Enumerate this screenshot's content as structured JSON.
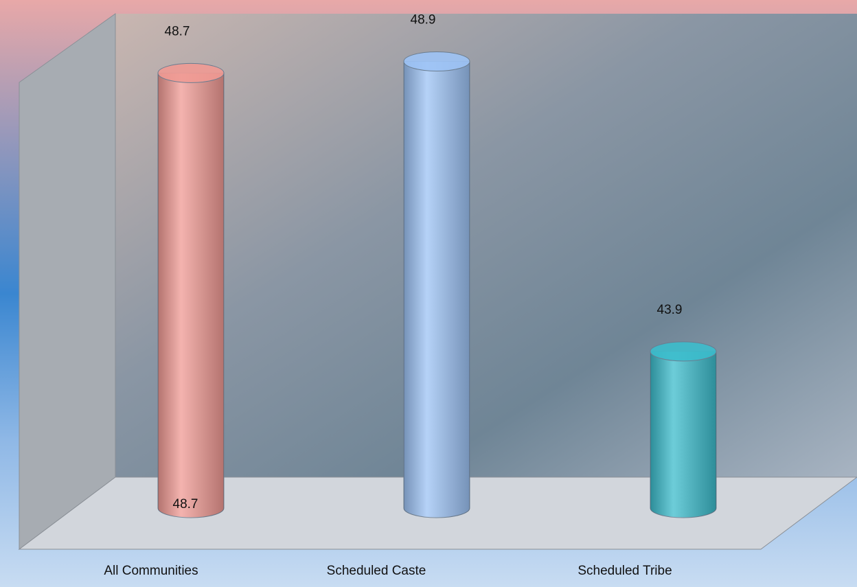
{
  "chart_data": {
    "type": "bar3d",
    "categories": [
      "All Communities",
      "Scheduled Caste",
      "Scheduled Tribe"
    ],
    "values": [
      48.7,
      48.9,
      43.9
    ],
    "colors": [
      "#f09a94",
      "#9dc3f5",
      "#3cbccc"
    ],
    "ylim": [
      41.2,
      49
    ]
  }
}
